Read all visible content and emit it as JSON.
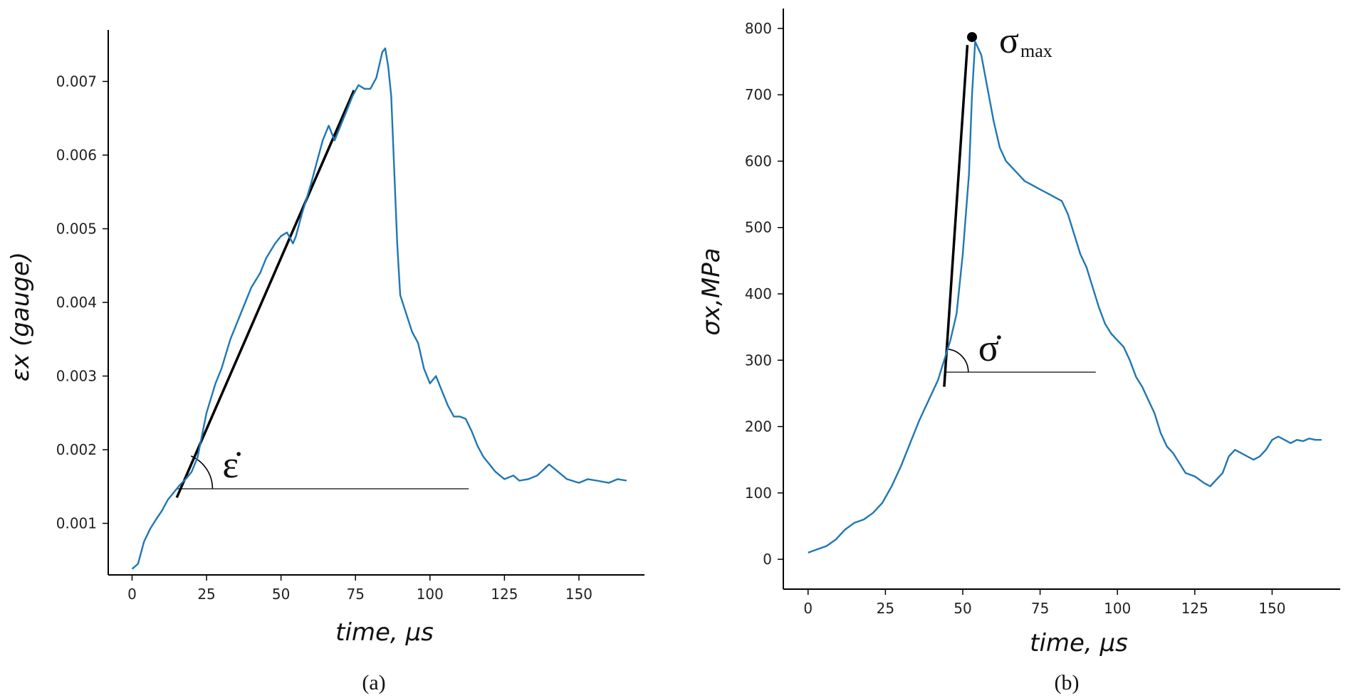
{
  "chart_data": [
    {
      "panel_label": "(a)",
      "type": "line",
      "xlabel": "time, μs",
      "ylabel": "εx  (gauge)",
      "xlim": [
        -8,
        172
      ],
      "ylim": [
        0.0003,
        0.0077
      ],
      "xticks": [
        0,
        25,
        50,
        75,
        100,
        125,
        150
      ],
      "xtick_labels": [
        "0",
        "25",
        "50",
        "75",
        "100",
        "125",
        "150"
      ],
      "yticks": [
        0.001,
        0.002,
        0.003,
        0.004,
        0.005,
        0.006,
        0.007
      ],
      "ytick_labels": [
        "0.001",
        "0.002",
        "0.003",
        "0.004",
        "0.005",
        "0.006",
        "0.007"
      ],
      "grid": false,
      "series_color": "#1f77b4",
      "series": [
        {
          "x": [
            0,
            2,
            4,
            6,
            8,
            10,
            12,
            14,
            16,
            18,
            20,
            22,
            25,
            28,
            30,
            33,
            35,
            38,
            40,
            43,
            45,
            48,
            50,
            52,
            54,
            55,
            57,
            60,
            62,
            64,
            66,
            68,
            70,
            72,
            74,
            76,
            78,
            80,
            82,
            84,
            85,
            86,
            87,
            88,
            89,
            90,
            92,
            94,
            96,
            98,
            100,
            102,
            104,
            106,
            108,
            110,
            112,
            114,
            116,
            118,
            120,
            122,
            125,
            128,
            130,
            133,
            136,
            140,
            143,
            146,
            150,
            153,
            156,
            160,
            163,
            166
          ],
          "values": [
            0.00038,
            0.00045,
            0.00075,
            0.00092,
            0.00105,
            0.00117,
            0.00132,
            0.00142,
            0.00152,
            0.0016,
            0.0017,
            0.0019,
            0.0025,
            0.0029,
            0.0031,
            0.0035,
            0.0037,
            0.004,
            0.0042,
            0.0044,
            0.0046,
            0.0048,
            0.0049,
            0.00495,
            0.0048,
            0.0049,
            0.0052,
            0.0056,
            0.0059,
            0.0062,
            0.0064,
            0.0062,
            0.0064,
            0.0066,
            0.0068,
            0.00695,
            0.0069,
            0.0069,
            0.00705,
            0.0074,
            0.00745,
            0.0072,
            0.0068,
            0.0058,
            0.0048,
            0.0041,
            0.00385,
            0.0036,
            0.00345,
            0.0031,
            0.0029,
            0.003,
            0.0028,
            0.0026,
            0.00245,
            0.00245,
            0.00242,
            0.00225,
            0.00205,
            0.0019,
            0.0018,
            0.0017,
            0.0016,
            0.00165,
            0.00158,
            0.0016,
            0.00165,
            0.0018,
            0.0017,
            0.0016,
            0.00155,
            0.0016,
            0.00158,
            0.00155,
            0.0016,
            0.00158
          ]
        }
      ],
      "annotations": {
        "slope_line": {
          "x": [
            15,
            74.5
          ],
          "values": [
            0.00135,
            0.00688
          ]
        },
        "reference_line": {
          "x": [
            15,
            113
          ],
          "values": [
            0.00147,
            0.00147
          ]
        },
        "angle_arc": {
          "x": 15,
          "value": 0.00147,
          "radius_units": 12
        },
        "symbol": "ε̇"
      }
    },
    {
      "panel_label": "(b)",
      "type": "line",
      "xlabel": "time, μs",
      "ylabel": "σx,MPa",
      "xlim": [
        -8,
        172
      ],
      "ylim": [
        -45,
        830
      ],
      "xticks": [
        0,
        25,
        50,
        75,
        100,
        125,
        150
      ],
      "xtick_labels": [
        "0",
        "25",
        "50",
        "75",
        "100",
        "125",
        "150"
      ],
      "yticks": [
        0,
        100,
        200,
        300,
        400,
        500,
        600,
        700,
        800
      ],
      "ytick_labels": [
        "0",
        "100",
        "200",
        "300",
        "400",
        "500",
        "600",
        "700",
        "800"
      ],
      "grid": false,
      "series_color": "#1f77b4",
      "series": [
        {
          "x": [
            0,
            3,
            6,
            9,
            12,
            15,
            18,
            21,
            24,
            27,
            30,
            33,
            36,
            39,
            42,
            44,
            46,
            48,
            50,
            52,
            53,
            54,
            56,
            58,
            60,
            62,
            64,
            66,
            68,
            70,
            72,
            74,
            76,
            78,
            80,
            82,
            84,
            86,
            88,
            90,
            92,
            94,
            96,
            98,
            100,
            102,
            104,
            106,
            108,
            110,
            112,
            114,
            116,
            118,
            120,
            122,
            125,
            128,
            130,
            132,
            134,
            136,
            138,
            140,
            142,
            144,
            146,
            148,
            150,
            152,
            154,
            156,
            158,
            160,
            162,
            164,
            166
          ],
          "values": [
            10,
            15,
            20,
            30,
            45,
            55,
            60,
            70,
            85,
            110,
            140,
            175,
            210,
            240,
            270,
            300,
            330,
            370,
            460,
            580,
            700,
            780,
            760,
            710,
            660,
            620,
            600,
            590,
            580,
            570,
            565,
            560,
            555,
            550,
            545,
            540,
            520,
            490,
            460,
            440,
            410,
            380,
            355,
            340,
            330,
            320,
            300,
            275,
            260,
            240,
            220,
            190,
            170,
            160,
            145,
            130,
            125,
            115,
            110,
            120,
            130,
            155,
            165,
            160,
            155,
            150,
            155,
            165,
            180,
            185,
            180,
            175,
            180,
            178,
            182,
            180,
            180
          ]
        }
      ],
      "annotations": {
        "slope_line": {
          "x": [
            44,
            51.5
          ],
          "values": [
            260,
            775
          ]
        },
        "reference_line": {
          "x": [
            44.3,
            93
          ],
          "values": [
            282,
            282
          ]
        },
        "angle_arc": {
          "x": 44.3,
          "value": 282,
          "radius_units": 7.5
        },
        "peak_marker": {
          "x": 53,
          "value": 787
        },
        "symbol": "σ̇",
        "max_label": "σ",
        "max_subscript": "max"
      }
    }
  ]
}
